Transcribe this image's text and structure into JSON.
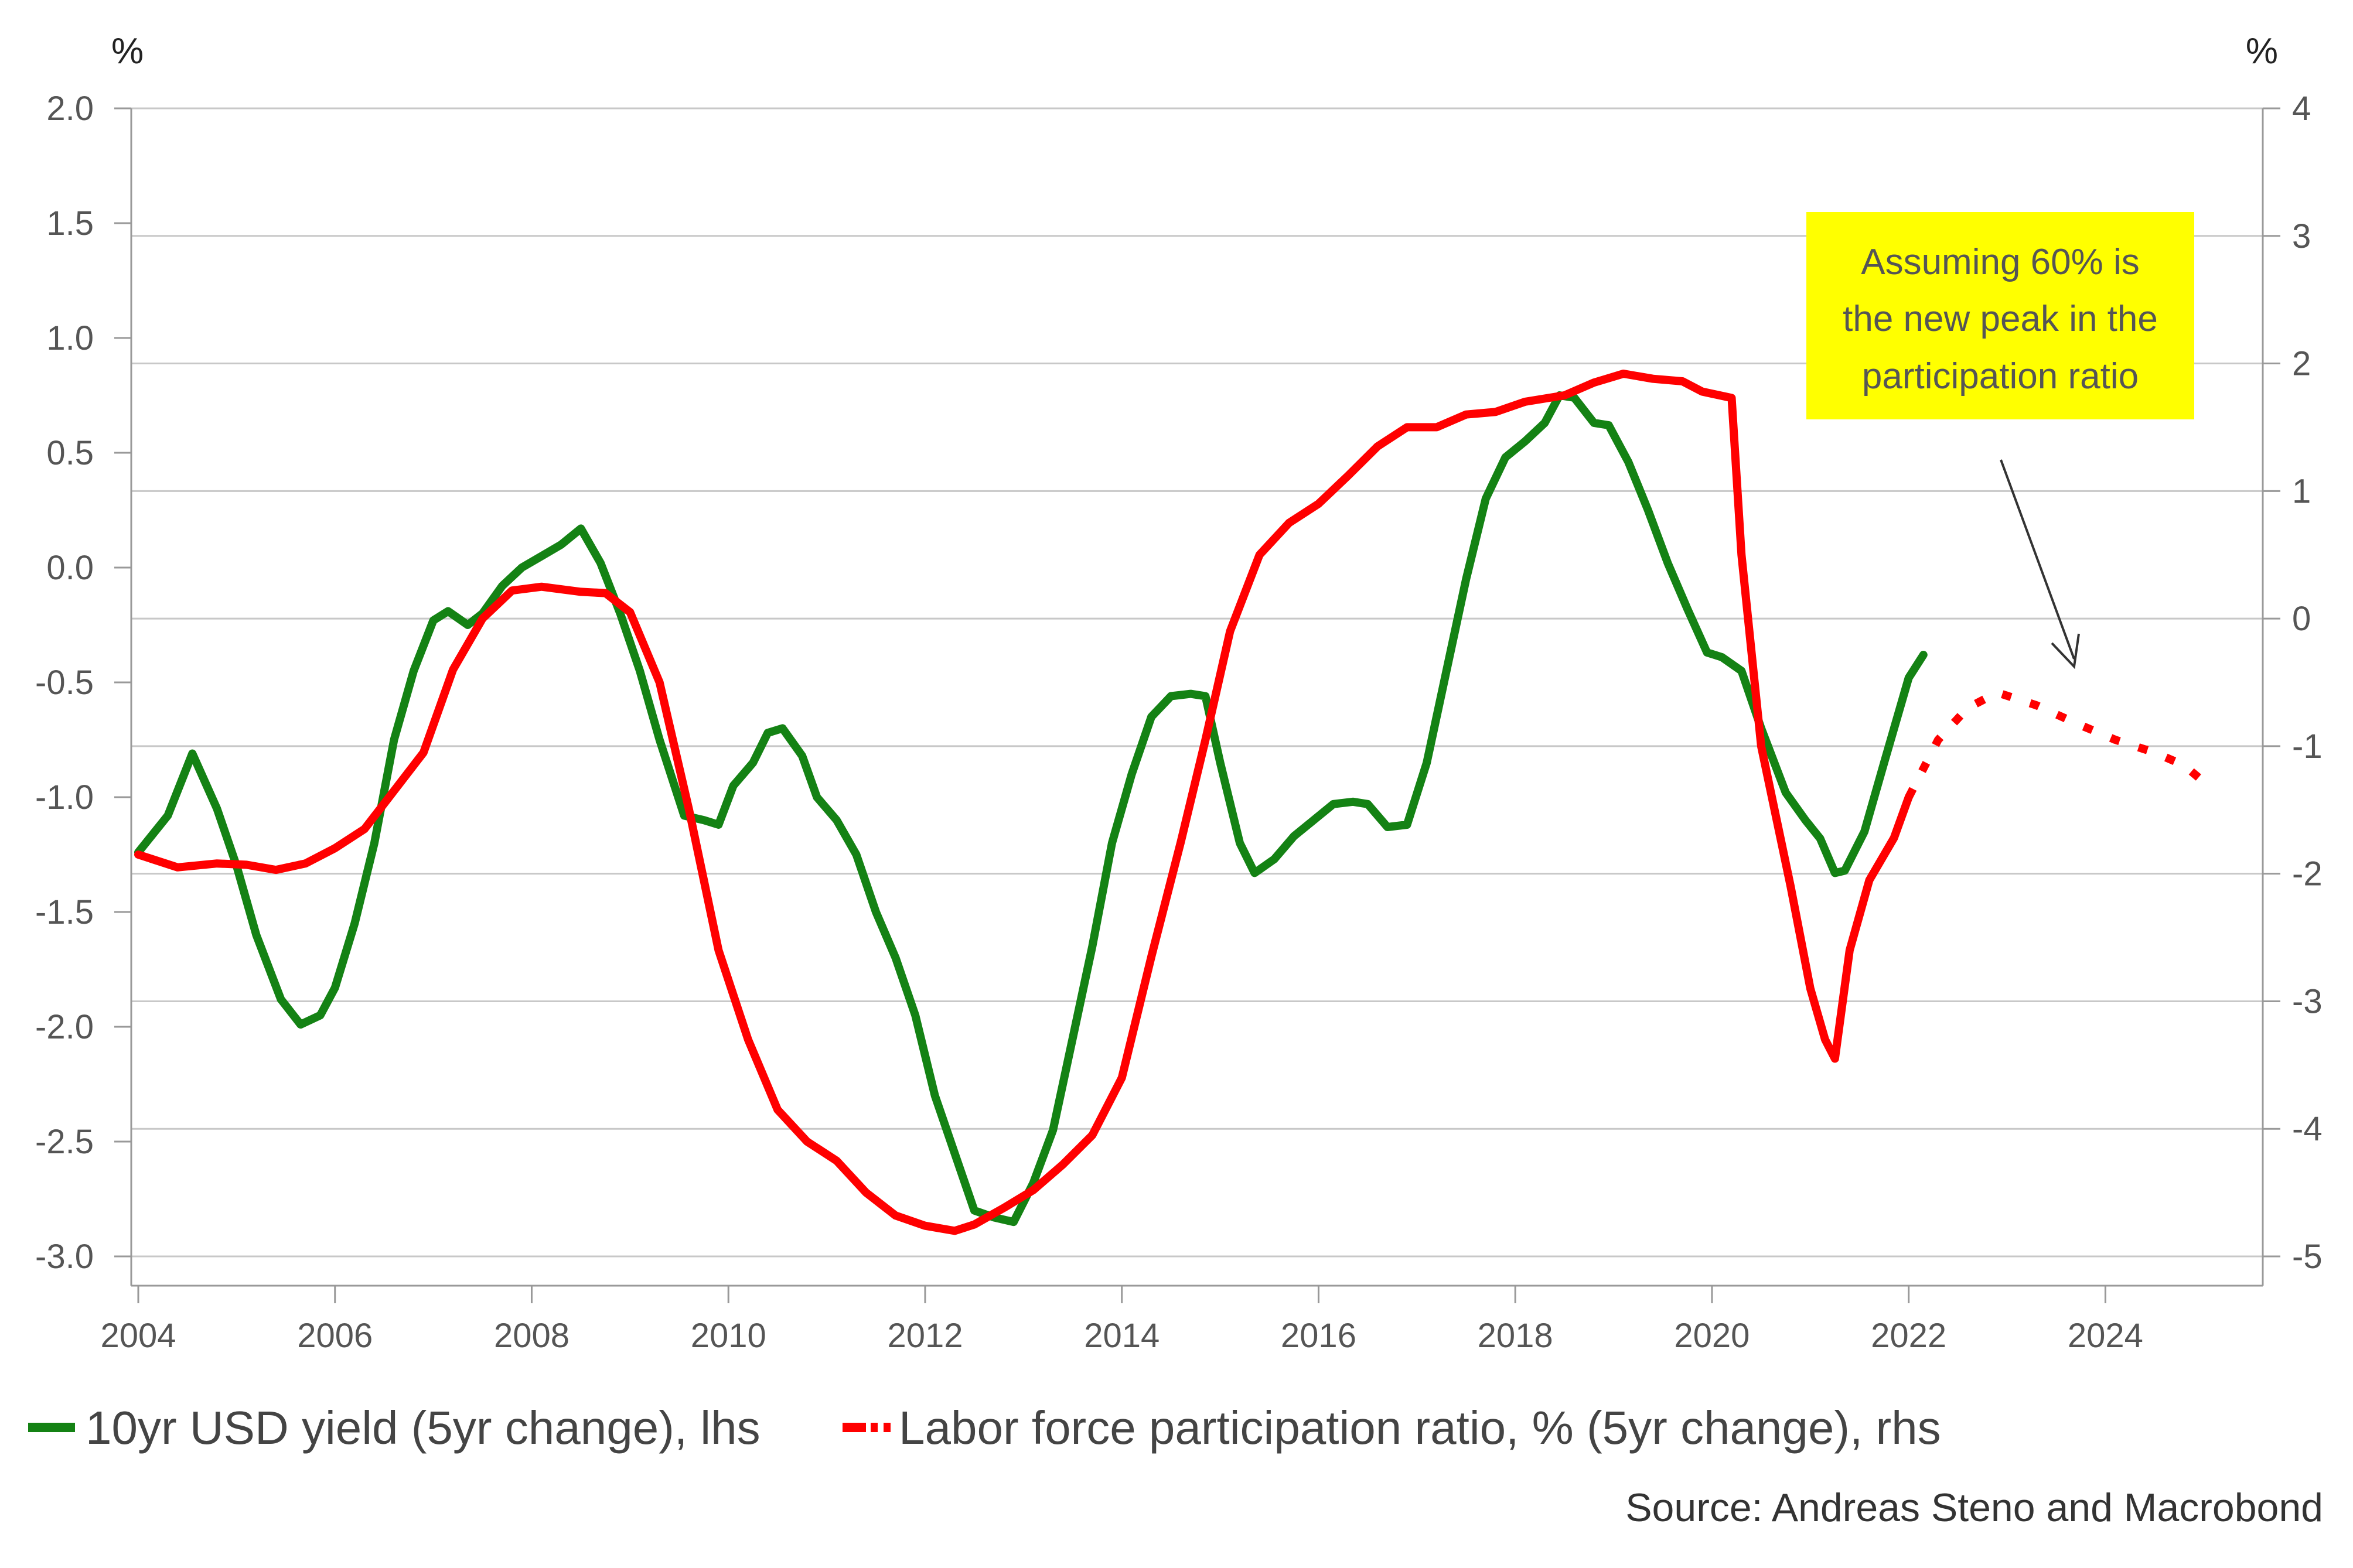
{
  "chart_data": {
    "type": "line",
    "left_axis": {
      "unit_label": "%",
      "ylim": [
        -3.0,
        2.0
      ],
      "ticks": [
        "2.0",
        "1.5",
        "1.0",
        "0.5",
        "0.0",
        "-0.5",
        "-1.0",
        "-1.5",
        "-2.0",
        "-2.5",
        "-3.0"
      ]
    },
    "right_axis": {
      "unit_label": "%",
      "ylim": [
        -5,
        4
      ],
      "ticks": [
        "4",
        "3",
        "2",
        "1",
        "0",
        "-1",
        "-2",
        "-3",
        "-4",
        "-5"
      ]
    },
    "x_axis": {
      "xlim": [
        2004,
        2025.6
      ],
      "ticks": [
        "2004",
        "2006",
        "2008",
        "2010",
        "2012",
        "2014",
        "2016",
        "2018",
        "2020",
        "2022",
        "2024"
      ]
    },
    "grid": "horizontal",
    "series": [
      {
        "name": "10yr USD yield (5yr change), lhs",
        "axis": "left",
        "color": "#148214",
        "style": "solid",
        "points": [
          [
            2004.0,
            -1.24
          ],
          [
            2004.3,
            -1.08
          ],
          [
            2004.55,
            -0.81
          ],
          [
            2004.8,
            -1.05
          ],
          [
            2005.0,
            -1.3
          ],
          [
            2005.2,
            -1.6
          ],
          [
            2005.45,
            -1.88
          ],
          [
            2005.65,
            -1.99
          ],
          [
            2005.85,
            -1.95
          ],
          [
            2006.0,
            -1.83
          ],
          [
            2006.2,
            -1.55
          ],
          [
            2006.4,
            -1.2
          ],
          [
            2006.6,
            -0.75
          ],
          [
            2006.8,
            -0.45
          ],
          [
            2007.0,
            -0.23
          ],
          [
            2007.15,
            -0.19
          ],
          [
            2007.35,
            -0.25
          ],
          [
            2007.5,
            -0.2
          ],
          [
            2007.7,
            -0.08
          ],
          [
            2007.9,
            0.0
          ],
          [
            2008.1,
            0.05
          ],
          [
            2008.3,
            0.1
          ],
          [
            2008.5,
            0.17
          ],
          [
            2008.7,
            0.02
          ],
          [
            2008.9,
            -0.2
          ],
          [
            2009.1,
            -0.45
          ],
          [
            2009.3,
            -0.75
          ],
          [
            2009.55,
            -1.08
          ],
          [
            2009.75,
            -1.1
          ],
          [
            2009.9,
            -1.12
          ],
          [
            2010.05,
            -0.95
          ],
          [
            2010.25,
            -0.85
          ],
          [
            2010.4,
            -0.72
          ],
          [
            2010.55,
            -0.7
          ],
          [
            2010.75,
            -0.82
          ],
          [
            2010.9,
            -1.0
          ],
          [
            2011.1,
            -1.1
          ],
          [
            2011.3,
            -1.25
          ],
          [
            2011.5,
            -1.5
          ],
          [
            2011.7,
            -1.7
          ],
          [
            2011.9,
            -1.95
          ],
          [
            2012.1,
            -2.3
          ],
          [
            2012.3,
            -2.55
          ],
          [
            2012.5,
            -2.8
          ],
          [
            2012.7,
            -2.83
          ],
          [
            2012.9,
            -2.85
          ],
          [
            2013.1,
            -2.68
          ],
          [
            2013.3,
            -2.45
          ],
          [
            2013.5,
            -2.05
          ],
          [
            2013.7,
            -1.65
          ],
          [
            2013.9,
            -1.2
          ],
          [
            2014.1,
            -0.9
          ],
          [
            2014.3,
            -0.65
          ],
          [
            2014.5,
            -0.56
          ],
          [
            2014.7,
            -0.55
          ],
          [
            2014.85,
            -0.56
          ],
          [
            2015.0,
            -0.85
          ],
          [
            2015.2,
            -1.2
          ],
          [
            2015.35,
            -1.33
          ],
          [
            2015.55,
            -1.27
          ],
          [
            2015.75,
            -1.17
          ],
          [
            2015.95,
            -1.1
          ],
          [
            2016.15,
            -1.03
          ],
          [
            2016.35,
            -1.02
          ],
          [
            2016.5,
            -1.03
          ],
          [
            2016.7,
            -1.13
          ],
          [
            2016.9,
            -1.12
          ],
          [
            2017.1,
            -0.85
          ],
          [
            2017.3,
            -0.45
          ],
          [
            2017.5,
            -0.05
          ],
          [
            2017.7,
            0.3
          ],
          [
            2017.9,
            0.48
          ],
          [
            2018.1,
            0.55
          ],
          [
            2018.3,
            0.63
          ],
          [
            2018.45,
            0.75
          ],
          [
            2018.6,
            0.74
          ],
          [
            2018.8,
            0.63
          ],
          [
            2018.95,
            0.62
          ],
          [
            2019.15,
            0.46
          ],
          [
            2019.35,
            0.25
          ],
          [
            2019.55,
            0.02
          ],
          [
            2019.75,
            -0.18
          ],
          [
            2019.95,
            -0.37
          ],
          [
            2020.1,
            -0.39
          ],
          [
            2020.3,
            -0.45
          ],
          [
            2020.5,
            -0.7
          ],
          [
            2020.75,
            -0.98
          ],
          [
            2020.95,
            -1.1
          ],
          [
            2021.1,
            -1.18
          ],
          [
            2021.25,
            -1.33
          ],
          [
            2021.35,
            -1.32
          ],
          [
            2021.55,
            -1.15
          ],
          [
            2021.75,
            -0.85
          ],
          [
            2022.0,
            -0.48
          ],
          [
            2022.15,
            -0.38
          ]
        ]
      },
      {
        "name": "Labor force participation ratio, % (5yr change), rhs",
        "axis": "right",
        "color": "#ff0000",
        "style": "solid",
        "points": [
          [
            2004.0,
            -1.85
          ],
          [
            2004.4,
            -1.95
          ],
          [
            2004.8,
            -1.92
          ],
          [
            2005.1,
            -1.93
          ],
          [
            2005.4,
            -1.97
          ],
          [
            2005.7,
            -1.92
          ],
          [
            2006.0,
            -1.8
          ],
          [
            2006.3,
            -1.65
          ],
          [
            2006.6,
            -1.35
          ],
          [
            2006.9,
            -1.05
          ],
          [
            2007.2,
            -0.4
          ],
          [
            2007.5,
            0.0
          ],
          [
            2007.8,
            0.22
          ],
          [
            2008.1,
            0.25
          ],
          [
            2008.5,
            0.21
          ],
          [
            2008.75,
            0.2
          ],
          [
            2009.0,
            0.05
          ],
          [
            2009.3,
            -0.5
          ],
          [
            2009.6,
            -1.5
          ],
          [
            2009.9,
            -2.6
          ],
          [
            2010.2,
            -3.3
          ],
          [
            2010.5,
            -3.85
          ],
          [
            2010.8,
            -4.1
          ],
          [
            2011.1,
            -4.25
          ],
          [
            2011.4,
            -4.5
          ],
          [
            2011.7,
            -4.68
          ],
          [
            2012.0,
            -4.76
          ],
          [
            2012.3,
            -4.8
          ],
          [
            2012.5,
            -4.75
          ],
          [
            2012.8,
            -4.62
          ],
          [
            2013.1,
            -4.48
          ],
          [
            2013.4,
            -4.28
          ],
          [
            2013.7,
            -4.05
          ],
          [
            2014.0,
            -3.6
          ],
          [
            2014.3,
            -2.65
          ],
          [
            2014.6,
            -1.75
          ],
          [
            2014.85,
            -0.95
          ],
          [
            2015.1,
            -0.1
          ],
          [
            2015.4,
            0.5
          ],
          [
            2015.7,
            0.75
          ],
          [
            2016.0,
            0.9
          ],
          [
            2016.3,
            1.12
          ],
          [
            2016.6,
            1.35
          ],
          [
            2016.9,
            1.5
          ],
          [
            2017.2,
            1.5
          ],
          [
            2017.5,
            1.6
          ],
          [
            2017.8,
            1.62
          ],
          [
            2018.1,
            1.7
          ],
          [
            2018.5,
            1.75
          ],
          [
            2018.8,
            1.85
          ],
          [
            2019.1,
            1.92
          ],
          [
            2019.4,
            1.88
          ],
          [
            2019.7,
            1.86
          ],
          [
            2019.9,
            1.78
          ],
          [
            2020.2,
            1.73
          ],
          [
            2020.3,
            0.5
          ],
          [
            2020.5,
            -1.0
          ],
          [
            2020.8,
            -2.1
          ],
          [
            2021.0,
            -2.9
          ],
          [
            2021.15,
            -3.3
          ],
          [
            2021.25,
            -3.45
          ],
          [
            2021.4,
            -2.6
          ],
          [
            2021.6,
            -2.05
          ],
          [
            2021.85,
            -1.72
          ],
          [
            2022.0,
            -1.4
          ]
        ]
      },
      {
        "name": "Labor force participation ratio, % (5yr change), rhs - projection",
        "axis": "right",
        "color": "#ff0000",
        "style": "dotted",
        "points": [
          [
            2022.0,
            -1.4
          ],
          [
            2022.3,
            -0.95
          ],
          [
            2022.6,
            -0.7
          ],
          [
            2022.9,
            -0.58
          ],
          [
            2023.3,
            -0.68
          ],
          [
            2023.7,
            -0.82
          ],
          [
            2024.1,
            -0.95
          ],
          [
            2024.5,
            -1.05
          ],
          [
            2024.8,
            -1.15
          ],
          [
            2025.0,
            -1.28
          ]
        ]
      }
    ],
    "legend": {
      "position": "bottom-left",
      "items": [
        {
          "label": "10yr USD yield (5yr change), lhs",
          "color": "#148214",
          "style": "solid"
        },
        {
          "label": "Labor force participation ratio, % (5yr change), rhs",
          "color": "#ff0000",
          "style": "solid-dotted"
        }
      ]
    },
    "annotation": {
      "lines": [
        "Assuming 60% is",
        "the new peak in the",
        "participation ratio"
      ],
      "background": "#ffff00"
    },
    "source": "Source: Andreas Steno and Macrobond"
  }
}
